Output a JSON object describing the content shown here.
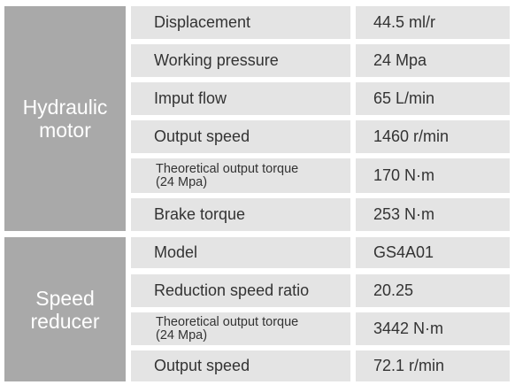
{
  "groups": [
    {
      "label_line1": "Hydraulic",
      "label_line2": "motor",
      "rows": [
        {
          "name": "Displacement",
          "value": "44.5 ml/r"
        },
        {
          "name": "Working pressure",
          "value": "24 Mpa"
        },
        {
          "name": "Imput flow",
          "value": "65 L/min"
        },
        {
          "name": "Output speed",
          "value": "1460 r/min"
        },
        {
          "name_line1": "Theoretical output torque",
          "name_line2": "(24 Mpa)",
          "value": "170 N·m"
        },
        {
          "name": "Brake torque",
          "value": "253 N·m"
        }
      ]
    },
    {
      "label_line1": "Speed",
      "label_line2": "reducer",
      "rows": [
        {
          "name": "Model",
          "value": "GS4A01"
        },
        {
          "name": "Reduction speed ratio",
          "value": "20.25"
        },
        {
          "name_line1": "Theoretical output torque",
          "name_line2": "(24 Mpa)",
          "value": "3442 N·m"
        },
        {
          "name": "Output speed",
          "value": "72.1 r/min"
        }
      ]
    }
  ]
}
